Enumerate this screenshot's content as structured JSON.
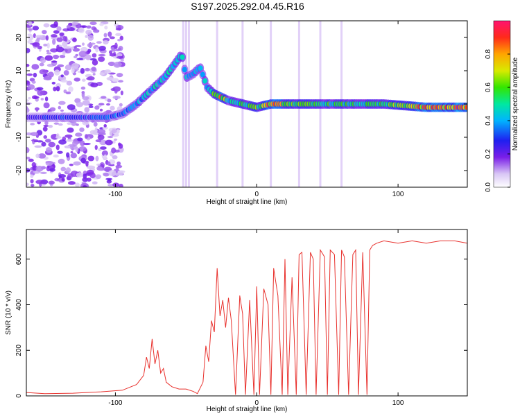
{
  "title": "S197.2025.292.04.45.R16",
  "colors": {
    "line": "#e8302c",
    "frame": "#000000"
  },
  "chart_data": [
    {
      "type": "heatmap",
      "xlabel": "Height of straight line (km)",
      "ylabel": "Frequency (Hz)",
      "xlim": [
        -163,
        149
      ],
      "ylim": [
        -25,
        25
      ],
      "xticks": [
        -100,
        0,
        100
      ],
      "xtick_labels": [
        "-100",
        "0",
        "100"
      ],
      "yticks": [
        20,
        10,
        0,
        -10,
        -20
      ],
      "ytick_labels": [
        "20",
        "10",
        "0",
        "-10",
        "-20"
      ],
      "colorbar": {
        "label": "Normalized spectral amplitude",
        "range": [
          0,
          1
        ],
        "ticks": [
          0.0,
          0.2,
          0.4,
          0.6,
          0.8
        ],
        "tick_labels": [
          "0.0",
          "0.2",
          "0.4",
          "0.6",
          "0.8"
        ],
        "colormap": "rainbow"
      },
      "ridge": {
        "x": [
          -163,
          -140,
          -120,
          -105,
          -95,
          -85,
          -75,
          -65,
          -58,
          -53,
          -50,
          -45,
          -40,
          -35,
          -30,
          -25,
          -20,
          -10,
          0,
          10,
          30,
          60,
          90,
          120,
          149
        ],
        "y": [
          -4,
          -4,
          -4,
          -4,
          -3,
          0,
          4,
          8,
          12,
          15,
          8,
          9,
          11,
          5,
          3,
          2,
          1,
          0,
          -1,
          0,
          0,
          0,
          0,
          -1,
          -1
        ],
        "amplitude": [
          0.25,
          0.3,
          0.3,
          0.35,
          0.35,
          0.4,
          0.45,
          0.5,
          0.5,
          0.5,
          0.45,
          0.4,
          0.45,
          0.5,
          0.6,
          0.8,
          0.5,
          0.55,
          0.6,
          0.85,
          0.6,
          0.55,
          0.55,
          0.85,
          0.9
        ]
      }
    },
    {
      "type": "line",
      "xlabel": "Height of straight line (km)",
      "ylabel": "SNR (10 * v/v)",
      "xlim": [
        -163,
        149
      ],
      "ylim": [
        0,
        730
      ],
      "xticks": [
        -100,
        0,
        100
      ],
      "xtick_labels": [
        "-100",
        "0",
        "100"
      ],
      "yticks": [
        0,
        200,
        400,
        600
      ],
      "ytick_labels": [
        "0",
        "200",
        "400",
        "600"
      ],
      "series": [
        {
          "x": [
            -163,
            -150,
            -130,
            -110,
            -95,
            -85,
            -80,
            -78,
            -76,
            -74,
            -72,
            -70,
            -68,
            -66,
            -64,
            -60,
            -55,
            -50,
            -45,
            -42,
            -38,
            -36,
            -34,
            -32,
            -30,
            -28,
            -26,
            -24,
            -22,
            -20,
            -18,
            -15,
            -12,
            -10,
            -8,
            -5,
            -2,
            0,
            2,
            5,
            8,
            10,
            12,
            15,
            18,
            20,
            22,
            25,
            28,
            30,
            32,
            35,
            38,
            40,
            42,
            45,
            48,
            50,
            52,
            55,
            58,
            60,
            62,
            65,
            68,
            70,
            72,
            75,
            78,
            80,
            82,
            85,
            90,
            100,
            110,
            120,
            130,
            140,
            149
          ],
          "y": [
            15,
            10,
            12,
            18,
            25,
            50,
            90,
            170,
            120,
            250,
            140,
            200,
            100,
            120,
            60,
            40,
            30,
            30,
            20,
            10,
            60,
            220,
            150,
            330,
            280,
            560,
            350,
            420,
            300,
            430,
            330,
            5,
            440,
            360,
            5,
            420,
            5,
            480,
            5,
            470,
            400,
            5,
            560,
            440,
            5,
            600,
            5,
            520,
            5,
            620,
            630,
            5,
            630,
            600,
            5,
            640,
            610,
            5,
            640,
            620,
            5,
            640,
            610,
            5,
            620,
            640,
            5,
            630,
            5,
            640,
            660,
            670,
            680,
            670,
            680,
            670,
            680,
            680,
            670
          ]
        }
      ]
    }
  ]
}
